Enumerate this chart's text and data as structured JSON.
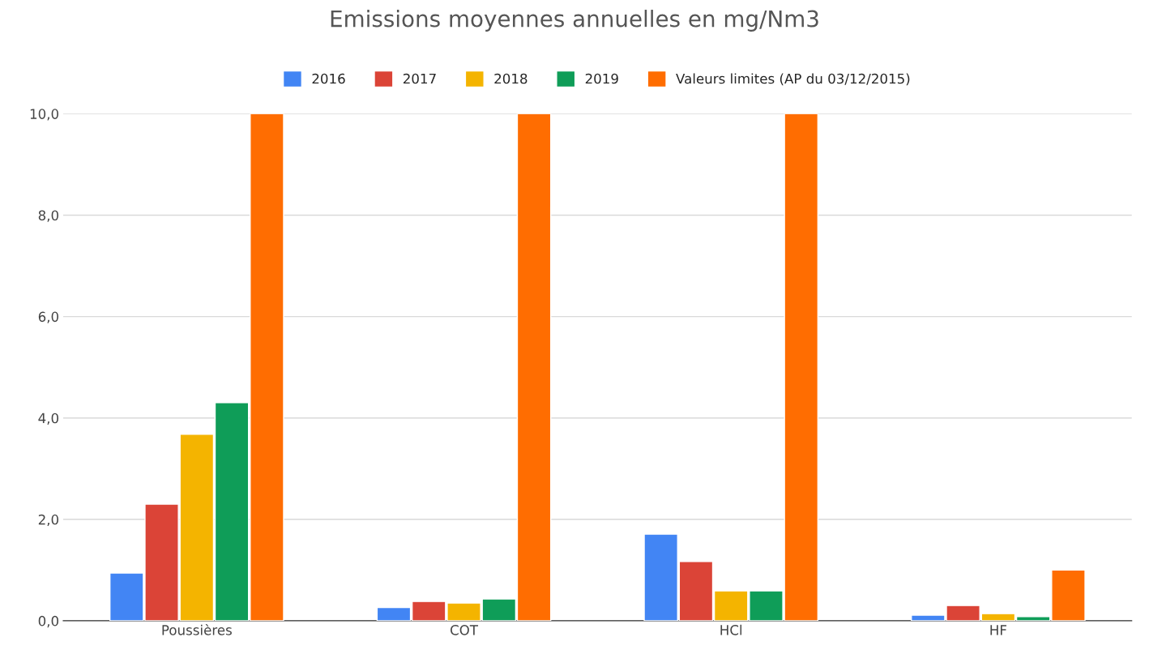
{
  "chart_data": {
    "type": "bar",
    "title": "Emissions moyennes annuelles en mg/Nm3",
    "categories": [
      "Poussières",
      "COT",
      "HCl",
      "HF"
    ],
    "series": [
      {
        "name": "2016",
        "color": "#4285f4",
        "values": [
          0.94,
          0.26,
          1.71,
          0.11
        ]
      },
      {
        "name": "2017",
        "color": "#db4437",
        "values": [
          2.3,
          0.38,
          1.17,
          0.3
        ]
      },
      {
        "name": "2018",
        "color": "#f4b400",
        "values": [
          3.68,
          0.35,
          0.59,
          0.14
        ]
      },
      {
        "name": "2019",
        "color": "#0f9d58",
        "values": [
          4.3,
          0.43,
          0.59,
          0.08
        ]
      },
      {
        "name": "Valeurs limites (AP du 03/12/2015)",
        "color": "#ff6d01",
        "values": [
          10,
          10,
          10,
          1
        ]
      }
    ],
    "ylim": [
      0,
      10
    ],
    "yticks": [
      {
        "value": 0,
        "label": "0,0"
      },
      {
        "value": 2,
        "label": "2,0"
      },
      {
        "value": 4,
        "label": "4,0"
      },
      {
        "value": 6,
        "label": "6,0"
      },
      {
        "value": 8,
        "label": "8,0"
      },
      {
        "value": 10,
        "label": "10,0"
      }
    ],
    "grid": "y",
    "legend": "top"
  }
}
